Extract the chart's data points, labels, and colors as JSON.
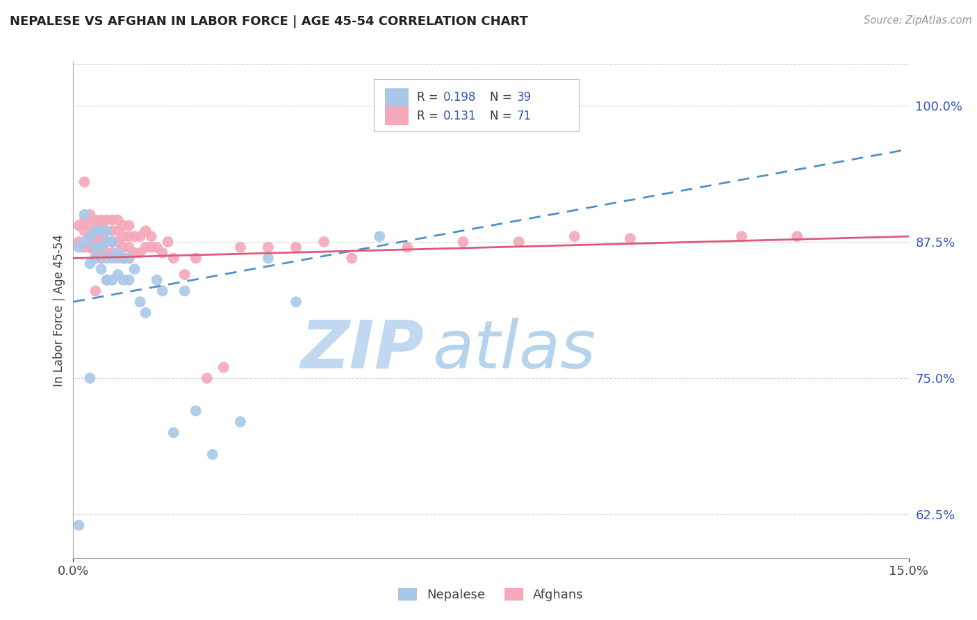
{
  "title": "NEPALESE VS AFGHAN IN LABOR FORCE | AGE 45-54 CORRELATION CHART",
  "source": "Source: ZipAtlas.com",
  "ylabel": "In Labor Force | Age 45-54",
  "x_min": 0.0,
  "x_max": 0.15,
  "y_min": 0.585,
  "y_max": 1.04,
  "right_yticks": [
    0.625,
    0.75,
    0.875,
    1.0
  ],
  "right_yticklabels": [
    "62.5%",
    "75.0%",
    "87.5%",
    "100.0%"
  ],
  "x_ticks": [
    0.0,
    0.15
  ],
  "x_ticklabels": [
    "0.0%",
    "15.0%"
  ],
  "nepalese_R": 0.198,
  "nepalese_N": 39,
  "afghan_R": 0.131,
  "afghan_N": 71,
  "nepalese_color": "#A8C8E8",
  "afghan_color": "#F4A8B8",
  "nepalese_line_color": "#5090C8",
  "afghan_line_color": "#E05878",
  "legend_label_color": "#3355BB",
  "title_color": "#222222",
  "grid_color": "#CCCCCC",
  "watermark_zip_color": "#C0D8F0",
  "watermark_atlas_color": "#A8CCE8",
  "background_color": "#FFFFFF",
  "nepalese_line_x0": 0.0,
  "nepalese_line_y0": 0.82,
  "nepalese_line_x1": 0.15,
  "nepalese_line_y1": 0.96,
  "afghan_line_x0": 0.0,
  "afghan_line_y0": 0.86,
  "afghan_line_x1": 0.15,
  "afghan_line_y1": 0.88,
  "nepalese_x": [
    0.001,
    0.002,
    0.002,
    0.003,
    0.003,
    0.004,
    0.004,
    0.004,
    0.005,
    0.005,
    0.005,
    0.006,
    0.006,
    0.006,
    0.006,
    0.007,
    0.007,
    0.007,
    0.008,
    0.008,
    0.009,
    0.009,
    0.01,
    0.01,
    0.011,
    0.012,
    0.013,
    0.015,
    0.016,
    0.018,
    0.02,
    0.022,
    0.025,
    0.03,
    0.035,
    0.04,
    0.055,
    0.001,
    0.003
  ],
  "nepalese_y": [
    0.87,
    0.875,
    0.9,
    0.855,
    0.88,
    0.86,
    0.87,
    0.885,
    0.85,
    0.87,
    0.885,
    0.84,
    0.86,
    0.875,
    0.885,
    0.84,
    0.86,
    0.875,
    0.845,
    0.865,
    0.84,
    0.86,
    0.84,
    0.86,
    0.85,
    0.82,
    0.81,
    0.84,
    0.83,
    0.7,
    0.83,
    0.72,
    0.68,
    0.71,
    0.86,
    0.82,
    0.88,
    0.615,
    0.75
  ],
  "afghan_x": [
    0.001,
    0.001,
    0.002,
    0.002,
    0.002,
    0.003,
    0.003,
    0.003,
    0.003,
    0.004,
    0.004,
    0.004,
    0.004,
    0.005,
    0.005,
    0.005,
    0.005,
    0.005,
    0.006,
    0.006,
    0.006,
    0.006,
    0.007,
    0.007,
    0.007,
    0.007,
    0.008,
    0.008,
    0.008,
    0.008,
    0.009,
    0.009,
    0.009,
    0.009,
    0.01,
    0.01,
    0.01,
    0.01,
    0.011,
    0.011,
    0.012,
    0.012,
    0.013,
    0.013,
    0.014,
    0.014,
    0.015,
    0.016,
    0.017,
    0.018,
    0.02,
    0.022,
    0.024,
    0.027,
    0.03,
    0.035,
    0.04,
    0.045,
    0.05,
    0.06,
    0.07,
    0.08,
    0.09,
    0.1,
    0.12,
    0.13,
    0.002,
    0.003,
    0.004,
    0.005,
    0.006
  ],
  "afghan_y": [
    0.875,
    0.89,
    0.87,
    0.885,
    0.895,
    0.87,
    0.88,
    0.89,
    0.9,
    0.865,
    0.875,
    0.885,
    0.895,
    0.86,
    0.87,
    0.88,
    0.89,
    0.895,
    0.865,
    0.875,
    0.885,
    0.895,
    0.865,
    0.875,
    0.885,
    0.895,
    0.86,
    0.875,
    0.885,
    0.895,
    0.86,
    0.87,
    0.88,
    0.89,
    0.86,
    0.87,
    0.88,
    0.89,
    0.865,
    0.88,
    0.865,
    0.88,
    0.87,
    0.885,
    0.87,
    0.88,
    0.87,
    0.865,
    0.875,
    0.86,
    0.845,
    0.86,
    0.75,
    0.76,
    0.87,
    0.87,
    0.87,
    0.875,
    0.86,
    0.87,
    0.875,
    0.875,
    0.88,
    0.878,
    0.88,
    0.88,
    0.93,
    0.87,
    0.83,
    0.88,
    0.84
  ]
}
